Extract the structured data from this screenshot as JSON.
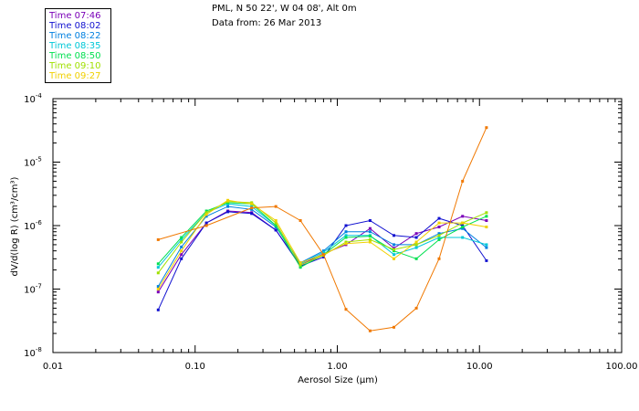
{
  "title": {
    "line1": "PML, N 50 22', W 04 08', Alt 0m",
    "line2": "Data from: 26 Mar 2013"
  },
  "chart_data": {
    "type": "line",
    "xscale": "log",
    "yscale": "log",
    "xlim": [
      0.01,
      100
    ],
    "ylim": [
      1e-08,
      0.0001
    ],
    "xlabel": "Aerosol Size (µm)",
    "ylabel": "dV/d(log R) (cm³/cm³)",
    "xticks": [
      {
        "value": 0.01,
        "label": "0.01"
      },
      {
        "value": 0.1,
        "label": "0.10"
      },
      {
        "value": 1,
        "label": "1.00"
      },
      {
        "value": 10,
        "label": "10.00"
      },
      {
        "value": 100,
        "label": "100.00"
      }
    ],
    "yticks": [
      {
        "value": 1e-08,
        "label": "10",
        "exp": "-8"
      },
      {
        "value": 1e-07,
        "label": "10",
        "exp": "-7"
      },
      {
        "value": 1e-06,
        "label": "10",
        "exp": "-6"
      },
      {
        "value": 1e-05,
        "label": "10",
        "exp": "-5"
      },
      {
        "value": 0.0001,
        "label": "10",
        "exp": "-4"
      }
    ],
    "x": [
      0.055,
      0.08,
      0.12,
      0.17,
      0.25,
      0.37,
      0.55,
      0.8,
      1.15,
      1.7,
      2.5,
      3.6,
      5.2,
      7.6,
      11.2
    ],
    "series": [
      {
        "name": "Time 07:46",
        "color": "#7a00b8",
        "values": [
          9e-08,
          3.5e-07,
          1.1e-06,
          1.7e-06,
          1.6e-06,
          8.5e-07,
          2.4e-07,
          3.6e-07,
          5e-07,
          9e-07,
          4.4e-07,
          7.5e-07,
          9.5e-07,
          1.4e-06,
          1.2e-06
        ]
      },
      {
        "name": "Time 08:02",
        "color": "#1010d0",
        "values": [
          4.7e-08,
          3e-07,
          1.1e-06,
          1.65e-06,
          1.55e-06,
          8.5e-07,
          2.3e-07,
          3.2e-07,
          1e-06,
          1.2e-06,
          7e-07,
          6.5e-07,
          1.3e-06,
          1e-06,
          2.8e-07
        ]
      },
      {
        "name": "Time 08:22",
        "color": "#0080e0",
        "values": [
          1.1e-07,
          4.6e-07,
          1.4e-06,
          2e-06,
          1.8e-06,
          9.5e-07,
          2.6e-07,
          4e-07,
          8e-07,
          8e-07,
          5e-07,
          5e-07,
          7.5e-07,
          9e-07,
          4.5e-07
        ]
      },
      {
        "name": "Time 08:35",
        "color": "#00c8d8",
        "values": [
          2.2e-07,
          6e-07,
          1.6e-06,
          2.2e-06,
          2e-06,
          1e-06,
          2.5e-07,
          3.8e-07,
          7e-07,
          7e-07,
          3.5e-07,
          4.5e-07,
          6.5e-07,
          6.5e-07,
          5e-07
        ]
      },
      {
        "name": "Time 08:50",
        "color": "#00e050",
        "values": [
          2.5e-07,
          6.5e-07,
          1.7e-06,
          2.3e-06,
          2.2e-06,
          1e-06,
          2.2e-07,
          3.5e-07,
          6.5e-07,
          6.8e-07,
          4e-07,
          3e-07,
          6e-07,
          9.5e-07,
          1.4e-06
        ]
      },
      {
        "name": "Time 09:10",
        "color": "#a0e000",
        "values": [
          1.8e-07,
          5.5e-07,
          1.6e-06,
          2.4e-06,
          2.3e-06,
          1.1e-06,
          2.4e-07,
          3.4e-07,
          5.5e-07,
          6e-07,
          4.2e-07,
          5e-07,
          7e-07,
          1.1e-06,
          1.6e-06
        ]
      },
      {
        "name": "Time 09:27",
        "color": "#f0d000",
        "values": [
          1e-07,
          4e-07,
          1.5e-06,
          2.5e-06,
          2.2e-06,
          1.2e-06,
          2.6e-07,
          3.5e-07,
          5.2e-07,
          5.5e-07,
          3e-07,
          5.5e-07,
          1.1e-06,
          1.1e-06,
          9.5e-07
        ]
      },
      {
        "name": "",
        "color": "#f07800",
        "x": [
          0.055,
          0.12,
          0.25,
          0.37,
          0.55,
          0.8,
          1.15,
          1.7,
          2.5,
          3.6,
          5.2,
          7.6,
          11.2
        ],
        "values": [
          6e-07,
          1e-06,
          1.9e-06,
          2e-06,
          1.2e-06,
          3.5e-07,
          4.8e-08,
          2.2e-08,
          2.5e-08,
          5e-08,
          3e-07,
          5e-06,
          3.5e-05
        ]
      }
    ]
  }
}
